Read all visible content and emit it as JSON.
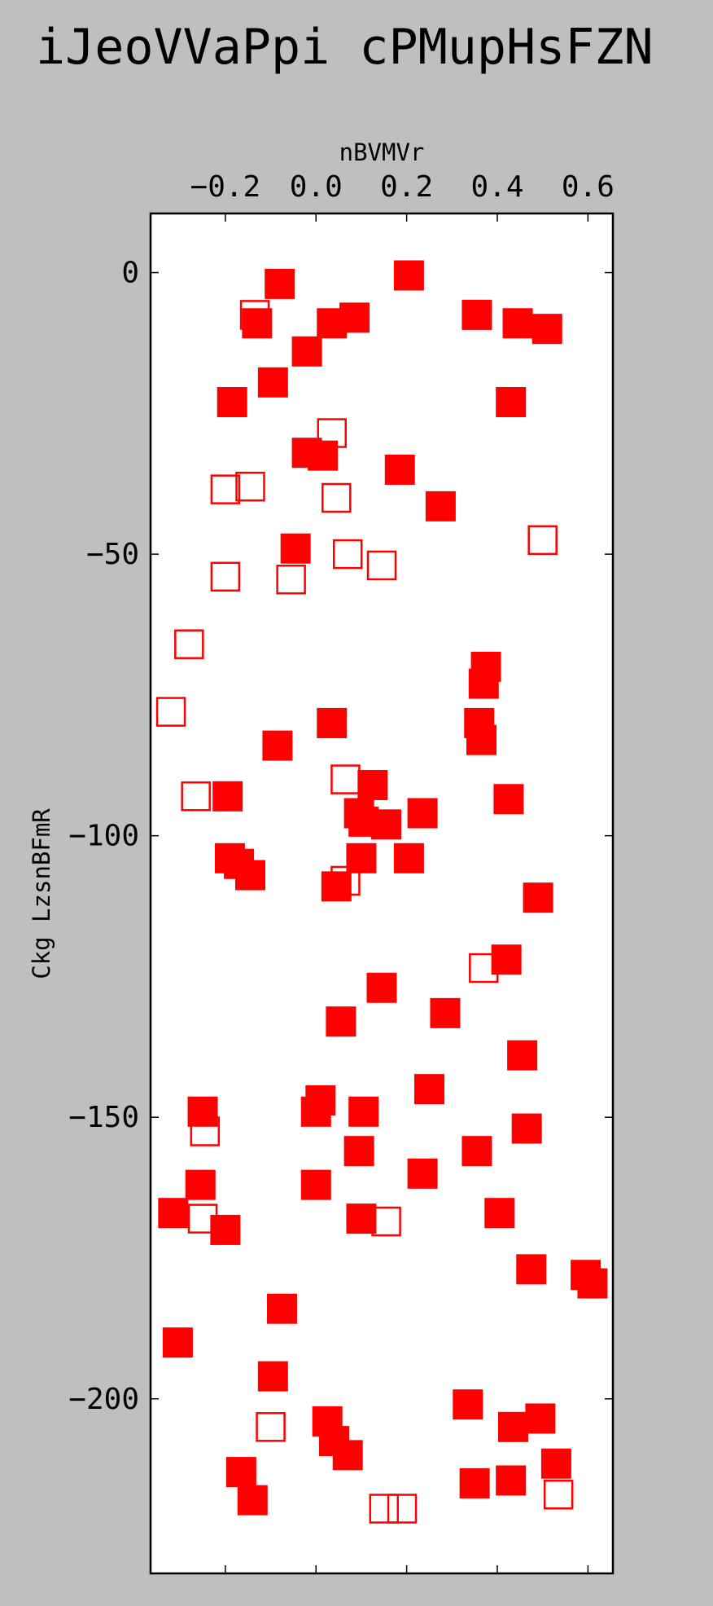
{
  "chart_data": {
    "type": "scatter",
    "title": "iJeoVVaPpi  cPMupHsFZN",
    "xlabel": "nBVMVr",
    "ylabel": "Ckg LzsnBFmR",
    "xlim": [
      -0.365,
      0.655
    ],
    "ylim": [
      -231,
      10.5
    ],
    "x_axis_position": "top",
    "grid": false,
    "marker": "square",
    "color": "#ff0000",
    "x_ticks": [
      -0.2,
      0.0,
      0.2,
      0.4,
      0.6
    ],
    "x_tick_labels": [
      "−0.2",
      "0.0",
      "0.2",
      "0.4",
      "0.6"
    ],
    "y_ticks": [
      0,
      -50,
      -100,
      -150,
      -200
    ],
    "y_tick_labels": [
      "0",
      "−50",
      "−100",
      "−150",
      "−200"
    ],
    "series": [
      {
        "style": "filled",
        "points": [
          [
            -0.08,
            -2
          ],
          [
            0.205,
            -0.5
          ],
          [
            -0.13,
            -9
          ],
          [
            0.035,
            -9
          ],
          [
            0.085,
            -8
          ],
          [
            0.355,
            -7.5
          ],
          [
            0.445,
            -9
          ],
          [
            0.51,
            -10
          ],
          [
            -0.02,
            -14
          ],
          [
            -0.095,
            -19.5
          ],
          [
            -0.185,
            -23
          ],
          [
            0.43,
            -23
          ],
          [
            -0.02,
            -32
          ],
          [
            0.015,
            -32.5
          ],
          [
            0.185,
            -35
          ],
          [
            0.275,
            -41.5
          ],
          [
            -0.045,
            -49
          ],
          [
            0.375,
            -70
          ],
          [
            0.37,
            -73
          ],
          [
            0.36,
            -80
          ],
          [
            0.365,
            -83
          ],
          [
            0.035,
            -80
          ],
          [
            -0.085,
            -84
          ],
          [
            -0.195,
            -93
          ],
          [
            0.125,
            -91
          ],
          [
            0.095,
            -96
          ],
          [
            0.105,
            -97.5
          ],
          [
            0.155,
            -98
          ],
          [
            0.235,
            -96
          ],
          [
            0.425,
            -93.5
          ],
          [
            -0.19,
            -104
          ],
          [
            -0.17,
            -105
          ],
          [
            -0.145,
            -107
          ],
          [
            0.1,
            -104
          ],
          [
            0.045,
            -109
          ],
          [
            0.205,
            -104
          ],
          [
            0.49,
            -111
          ],
          [
            0.42,
            -122
          ],
          [
            0.145,
            -127
          ],
          [
            0.285,
            -131.5
          ],
          [
            0.055,
            -133
          ],
          [
            0.455,
            -139
          ],
          [
            -0.25,
            -149
          ],
          [
            0.01,
            -147
          ],
          [
            0,
            -149
          ],
          [
            0.105,
            -149
          ],
          [
            0.25,
            -145
          ],
          [
            0.465,
            -152
          ],
          [
            0.095,
            -156
          ],
          [
            0.355,
            -156
          ],
          [
            -0.255,
            -162
          ],
          [
            0,
            -162
          ],
          [
            0.235,
            -160
          ],
          [
            -0.315,
            -167
          ],
          [
            -0.2,
            -170
          ],
          [
            0.1,
            -168
          ],
          [
            0.405,
            -167
          ],
          [
            0.475,
            -177
          ],
          [
            0.595,
            -178
          ],
          [
            0.61,
            -179.5
          ],
          [
            -0.075,
            -184
          ],
          [
            -0.305,
            -190
          ],
          [
            -0.095,
            -196
          ],
          [
            0.335,
            -201
          ],
          [
            0.025,
            -204
          ],
          [
            0.04,
            -207.5
          ],
          [
            0.07,
            -210
          ],
          [
            0.435,
            -205
          ],
          [
            0.495,
            -203.5
          ],
          [
            0.53,
            -211.5
          ],
          [
            -0.165,
            -213
          ],
          [
            -0.14,
            -218
          ],
          [
            0.35,
            -215
          ],
          [
            0.43,
            -214.5
          ]
        ]
      },
      {
        "style": "hollow",
        "points": [
          [
            -0.135,
            -7.5
          ],
          [
            0.035,
            -28.5
          ],
          [
            -0.2,
            -38.5
          ],
          [
            -0.145,
            -38
          ],
          [
            0.045,
            -40
          ],
          [
            0.07,
            -50
          ],
          [
            0.145,
            -52
          ],
          [
            -0.2,
            -54
          ],
          [
            -0.055,
            -54.5
          ],
          [
            -0.28,
            -66
          ],
          [
            -0.32,
            -78
          ],
          [
            -0.265,
            -93
          ],
          [
            0.065,
            -90
          ],
          [
            0.065,
            -108
          ],
          [
            0.5,
            -47.5
          ],
          [
            0.37,
            -123.5
          ],
          [
            -0.245,
            -152.5
          ],
          [
            -0.25,
            -168
          ],
          [
            0.155,
            -168.5
          ],
          [
            -0.1,
            -205
          ],
          [
            0.15,
            -219.5
          ],
          [
            0.19,
            -219.5
          ],
          [
            0.535,
            -217
          ]
        ]
      }
    ]
  }
}
